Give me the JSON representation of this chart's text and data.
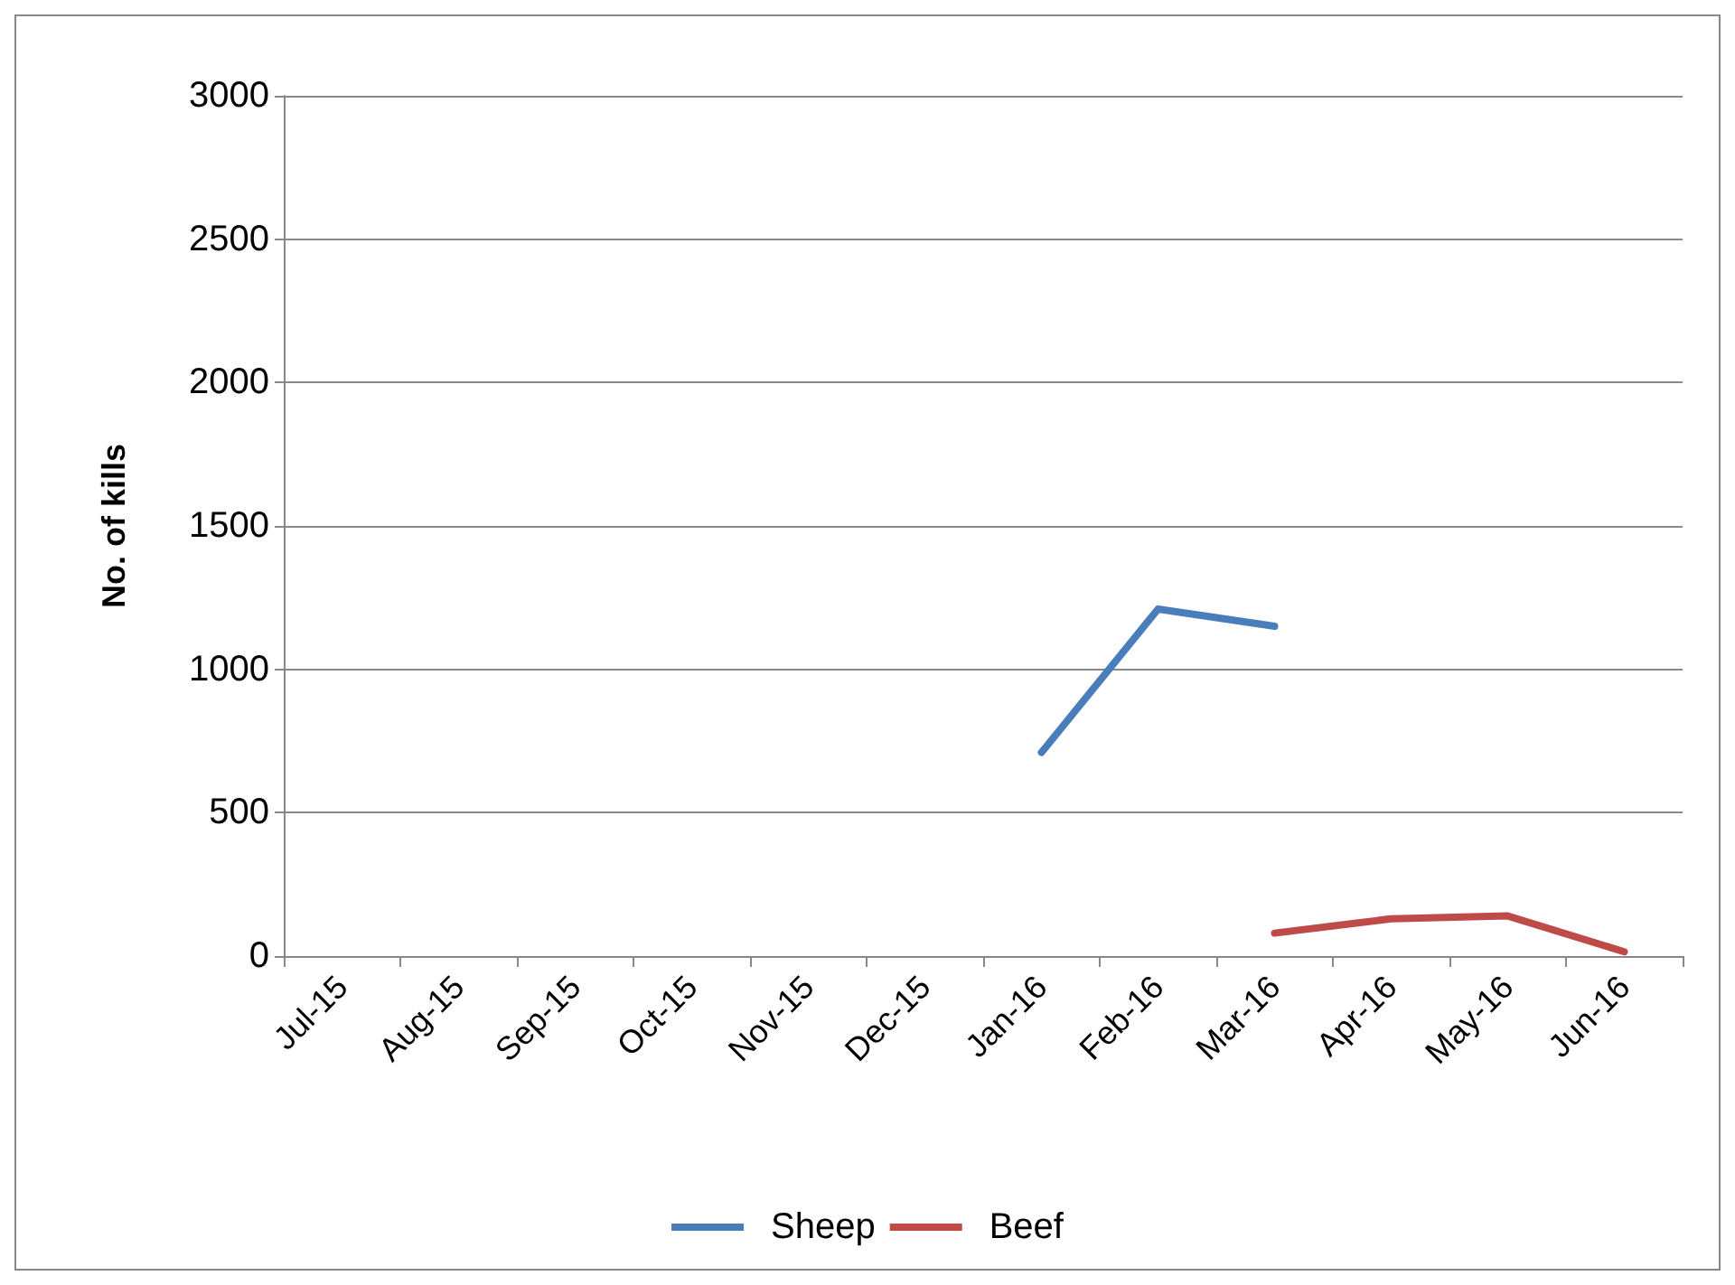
{
  "chart_data": {
    "type": "line",
    "ylabel": "No. of kills",
    "categories": [
      "Jul-15",
      "Aug-15",
      "Sep-15",
      "Oct-15",
      "Nov-15",
      "Dec-15",
      "Jan-16",
      "Feb-16",
      "Mar-16",
      "Apr-16",
      "May-16",
      "Jun-16"
    ],
    "series": [
      {
        "name": "Sheep",
        "color": "#4a7ebb",
        "values": [
          null,
          null,
          null,
          null,
          null,
          null,
          710,
          1210,
          1150,
          null,
          null,
          null
        ]
      },
      {
        "name": "Beef",
        "color": "#be4b48",
        "values": [
          null,
          null,
          null,
          null,
          null,
          null,
          null,
          null,
          80,
          130,
          140,
          15
        ]
      }
    ],
    "ylim": [
      0,
      3000
    ],
    "yticks": [
      0,
      500,
      1000,
      1500,
      2000,
      2500,
      3000
    ],
    "grid": "y",
    "legend": "bottom",
    "marker": "none",
    "line_style": "solid"
  }
}
